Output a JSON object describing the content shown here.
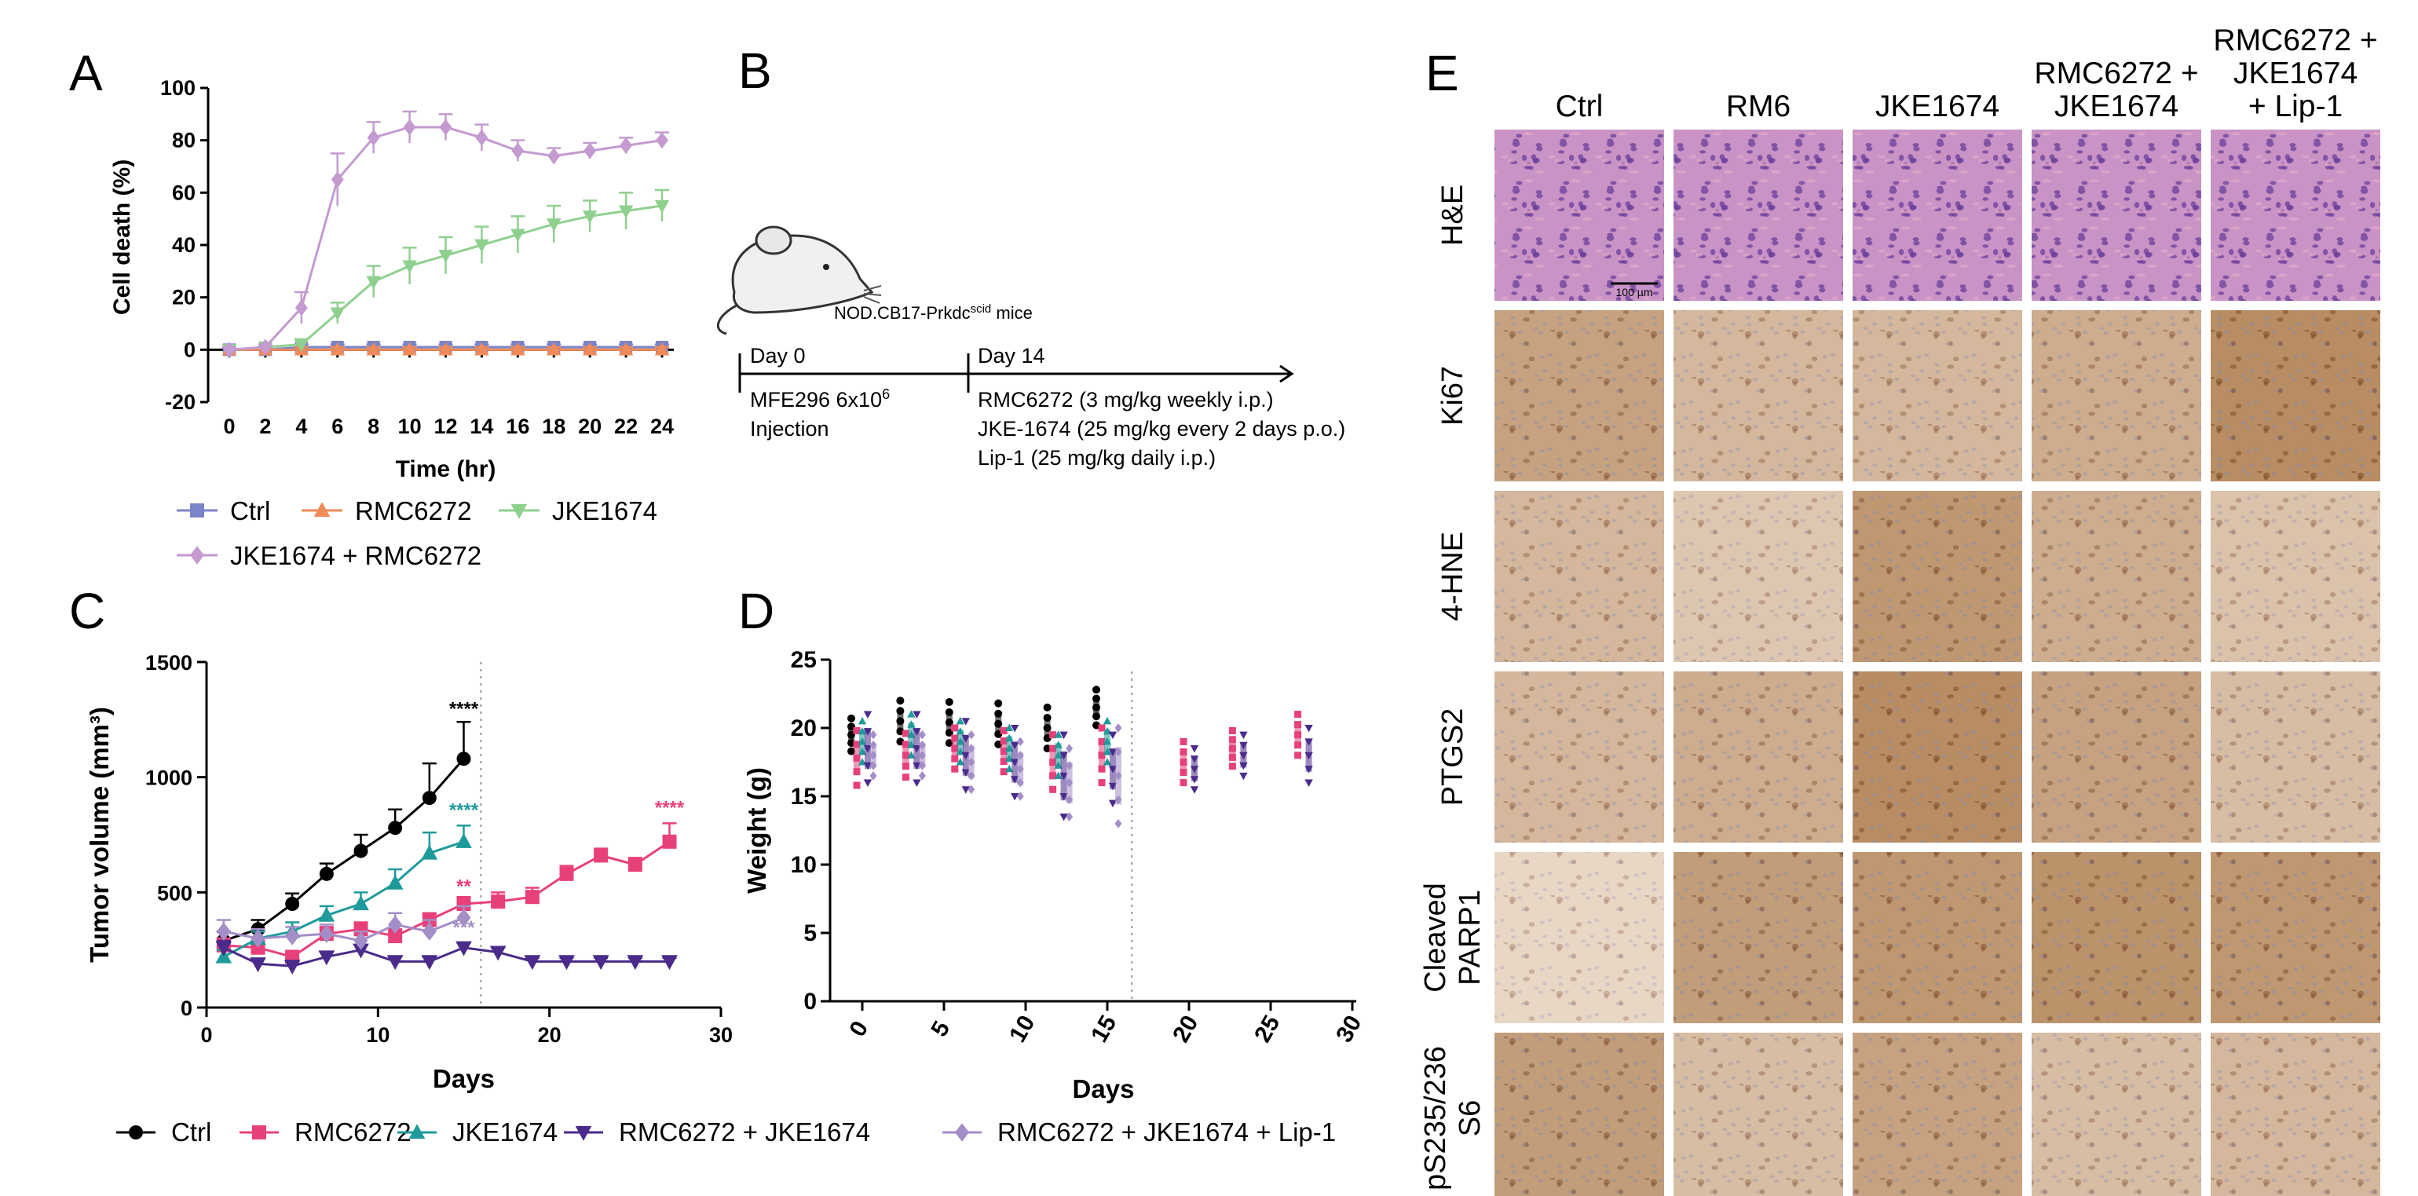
{
  "colors": {
    "ctrl": "#000000",
    "rmc": "#e8407a",
    "jke": "#1f9a9a",
    "combo": "#4a2a8a",
    "lip": "#a48ec8",
    "a_ctrl": "#7b84c8",
    "a_rmc": "#f08a58",
    "a_jke": "#8fd08f",
    "a_combo": "#c49ad0"
  },
  "chart_data": [
    {
      "panel": "A",
      "type": "line",
      "xlabel": "Time (hr)",
      "ylabel": "Cell death (%)",
      "xlim": [
        0,
        24
      ],
      "ylim": [
        -20,
        100
      ],
      "xticks": [
        0,
        2,
        4,
        6,
        8,
        10,
        12,
        14,
        16,
        18,
        20,
        22,
        24
      ],
      "yticks": [
        -20,
        0,
        20,
        40,
        60,
        80,
        100
      ],
      "x": [
        0,
        2,
        4,
        6,
        8,
        10,
        12,
        14,
        16,
        18,
        20,
        22,
        24
      ],
      "series": [
        {
          "name": "Ctrl",
          "color": "#7b84c8",
          "marker": "square",
          "values": [
            0,
            0,
            1,
            1,
            1,
            1,
            1,
            1,
            1,
            1,
            1,
            1,
            1
          ],
          "err": [
            1,
            1,
            1,
            1,
            1,
            1,
            1,
            1,
            1,
            1,
            1,
            1,
            1
          ]
        },
        {
          "name": "RMC6272",
          "color": "#f08a58",
          "marker": "triangle-up",
          "values": [
            0,
            0,
            0,
            0,
            0,
            0,
            0,
            0,
            0,
            0,
            0,
            0,
            0
          ],
          "err": [
            1,
            1,
            1,
            1,
            1,
            1,
            1,
            1,
            1,
            1,
            1,
            1,
            1
          ]
        },
        {
          "name": "JKE1674",
          "color": "#8fd08f",
          "marker": "triangle-down",
          "values": [
            0,
            1,
            2,
            14,
            26,
            32,
            36,
            40,
            44,
            48,
            51,
            53,
            55
          ],
          "err": [
            1,
            1,
            2,
            4,
            6,
            7,
            7,
            7,
            7,
            7,
            6,
            7,
            6
          ]
        },
        {
          "name": "JKE1674 + RMC6272",
          "color": "#c49ad0",
          "marker": "diamond",
          "values": [
            0,
            1,
            16,
            65,
            81,
            85,
            85,
            81,
            76,
            74,
            76,
            78,
            80
          ],
          "err": [
            1,
            1,
            6,
            10,
            6,
            6,
            5,
            5,
            4,
            3,
            3,
            3,
            3
          ]
        }
      ],
      "legend": [
        "Ctrl",
        "RMC6272",
        "JKE1674",
        "JKE1674 + RMC6272"
      ]
    },
    {
      "panel": "C",
      "type": "line",
      "xlabel": "Days",
      "ylabel": "Tumor volume (mm³)",
      "xlim": [
        0,
        30
      ],
      "ylim": [
        0,
        1500
      ],
      "xticks": [
        0,
        10,
        20,
        30
      ],
      "yticks": [
        0,
        500,
        1000,
        1500
      ],
      "series": [
        {
          "name": "Ctrl",
          "color": "#000000",
          "marker": "circle",
          "x": [
            1,
            3,
            5,
            7,
            9,
            11,
            13,
            15
          ],
          "values": [
            290,
            340,
            450,
            580,
            680,
            780,
            910,
            1080
          ],
          "err": [
            40,
            40,
            45,
            45,
            70,
            80,
            150,
            160
          ]
        },
        {
          "name": "RMC6272",
          "color": "#e8407a",
          "marker": "square",
          "x": [
            1,
            3,
            5,
            7,
            9,
            11,
            13,
            15,
            17,
            19,
            21,
            23,
            25,
            27
          ],
          "values": [
            270,
            260,
            220,
            320,
            340,
            310,
            380,
            450,
            460,
            480,
            580,
            660,
            620,
            720
          ],
          "err": [
            30,
            30,
            20,
            30,
            30,
            30,
            30,
            30,
            40,
            40,
            35,
            30,
            30,
            80
          ]
        },
        {
          "name": "JKE1674",
          "color": "#1f9a9a",
          "marker": "triangle-up",
          "x": [
            1,
            3,
            5,
            7,
            9,
            11,
            13,
            15
          ],
          "values": [
            220,
            300,
            330,
            400,
            450,
            540,
            670,
            720
          ],
          "err": [
            30,
            30,
            40,
            40,
            50,
            60,
            90,
            70
          ]
        },
        {
          "name": "RMC6272 + JKE1674",
          "color": "#4a2a8a",
          "marker": "triangle-down",
          "x": [
            1,
            3,
            5,
            7,
            9,
            11,
            13,
            15,
            17,
            19,
            21,
            23,
            25,
            27
          ],
          "values": [
            260,
            190,
            180,
            220,
            250,
            200,
            200,
            260,
            240,
            200,
            200,
            200,
            200,
            200
          ],
          "err": [
            30,
            20,
            20,
            20,
            20,
            20,
            20,
            20,
            20,
            15,
            15,
            15,
            15,
            15
          ]
        },
        {
          "name": "RMC6272 + JKE1674 + Lip-1",
          "color": "#a48ec8",
          "marker": "diamond",
          "x": [
            1,
            3,
            5,
            7,
            9,
            11,
            13,
            15
          ],
          "values": [
            330,
            300,
            310,
            320,
            290,
            360,
            330,
            390
          ],
          "err": [
            50,
            40,
            40,
            40,
            40,
            50,
            50,
            50
          ]
        }
      ],
      "annotations": [
        {
          "text": "****",
          "x": 15,
          "y": 1270,
          "color": "#000000"
        },
        {
          "text": "****",
          "x": 15,
          "y": 830,
          "color": "#1f9a9a"
        },
        {
          "text": "**",
          "x": 15,
          "y": 500,
          "color": "#e8407a"
        },
        {
          "text": "***",
          "x": 15,
          "y": 320,
          "color": "#a48ec8"
        },
        {
          "text": "****",
          "x": 27,
          "y": 840,
          "color": "#e8407a"
        }
      ],
      "dotted_line_x": 16
    },
    {
      "panel": "D",
      "type": "scatter",
      "xlabel": "Days",
      "ylabel": "Weight (g)",
      "xlim": [
        -1,
        30
      ],
      "ylim": [
        0,
        25
      ],
      "xticks": [
        0,
        5,
        10,
        15,
        20,
        25,
        30
      ],
      "yticks": [
        0,
        5,
        10,
        15,
        20,
        25
      ],
      "groups": [
        {
          "name": "Ctrl",
          "color": "#000000",
          "x": [
            0,
            3,
            6,
            9,
            12,
            15
          ],
          "mean": [
            19.5,
            20.5,
            20.4,
            20.3,
            20.0,
            21.5
          ],
          "spread": [
            1.2,
            1.5,
            1.5,
            1.5,
            1.5,
            1.3
          ]
        },
        {
          "name": "RMC6272",
          "color": "#e8407a",
          "x": [
            0,
            3,
            6,
            9,
            12,
            15,
            20,
            23,
            27
          ],
          "mean": [
            17.8,
            18.0,
            18.5,
            18.3,
            17.5,
            18.0,
            17.5,
            18.5,
            19.5
          ],
          "spread": [
            2.0,
            1.6,
            1.5,
            1.5,
            2.0,
            2.0,
            1.5,
            1.3,
            1.5
          ]
        },
        {
          "name": "JKE1674",
          "color": "#1f9a9a",
          "x": [
            0,
            3,
            6,
            9,
            12,
            15
          ],
          "mean": [
            19.0,
            19.5,
            19.0,
            18.5,
            18.0,
            19.0
          ],
          "spread": [
            1.5,
            1.5,
            1.5,
            1.5,
            1.5,
            1.5
          ]
        },
        {
          "name": "RMC6272 + JKE1674",
          "color": "#4a2a8a",
          "x": [
            0,
            3,
            6,
            9,
            12,
            15,
            20,
            23,
            27
          ],
          "mean": [
            18.5,
            18.5,
            18.0,
            17.5,
            16.5,
            17.0,
            17.0,
            18.0,
            18.0
          ],
          "spread": [
            2.5,
            2.5,
            2.5,
            2.5,
            3.0,
            2.5,
            1.5,
            1.5,
            2.0
          ]
        },
        {
          "name": "RMC6272 + JKE1674 + Lip-1",
          "color": "#a48ec8",
          "x": [
            0,
            3,
            6,
            9,
            12,
            15
          ],
          "mean": [
            18.0,
            18.0,
            17.5,
            17.0,
            16.0,
            16.5
          ],
          "spread": [
            1.5,
            1.5,
            2.0,
            2.0,
            2.5,
            3.5
          ]
        }
      ],
      "dotted_line_x": 16.5
    }
  ],
  "panelB": {
    "letter": "B",
    "mice": "NOD.CB17-Prkdc",
    "mice_sup": "scid",
    "mice_suffix": " mice",
    "day0": "Day 0",
    "day14": "Day 14",
    "inj_line1": "MFE296 6x10",
    "inj_sup": "6",
    "inj_line2": "Injection",
    "treat1": "RMC6272 (3 mg/kg weekly i.p.)",
    "treat2": "JKE-1674 (25 mg/kg every 2 days p.o.)",
    "treat3": "Lip-1 (25 mg/kg daily i.p.)"
  },
  "panelE": {
    "letter": "E",
    "columns": [
      "Ctrl",
      "RM6",
      "JKE1674",
      "RMC6272 +\nJKE1674",
      "RMC6272 +\nJKE1674\n+ Lip-1"
    ],
    "rows": [
      {
        "label": "H&E",
        "stain": "he"
      },
      {
        "label": "Ki67",
        "stain": "dab"
      },
      {
        "label": "4-HNE",
        "stain": "dab"
      },
      {
        "label": "PTGS2",
        "stain": "dab"
      },
      {
        "label": "Cleaved\nPARP1",
        "stain": "dab"
      },
      {
        "label": "pS235/236\nS6",
        "stain": "dab"
      }
    ],
    "intensity": [
      [
        0,
        0,
        0,
        0,
        0
      ],
      [
        0.55,
        0.35,
        0.35,
        0.45,
        0.75
      ],
      [
        0.35,
        0.2,
        0.65,
        0.45,
        0.25
      ],
      [
        0.35,
        0.45,
        0.75,
        0.55,
        0.3
      ],
      [
        0.05,
        0.6,
        0.65,
        0.7,
        0.65
      ],
      [
        0.6,
        0.3,
        0.55,
        0.3,
        0.35
      ]
    ],
    "scalebar": "100 µm"
  },
  "legendA": [
    "Ctrl",
    "RMC6272",
    "JKE1674",
    "JKE1674 + RMC6272"
  ],
  "legendCD": [
    "Ctrl",
    "RMC6272",
    "JKE1674",
    "RMC6272 + JKE1674",
    "RMC6272 + JKE1674 + Lip-1"
  ]
}
